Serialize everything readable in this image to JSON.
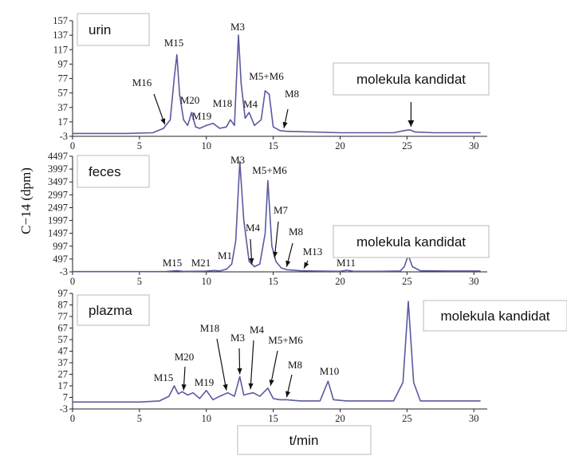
{
  "ylabel": "C−14 (dpm)",
  "xlabel": "t/min",
  "colors": {
    "trace": "#5a5aa0",
    "axis": "#222222",
    "box_border": "#b8b8b8"
  },
  "chart_data": [
    {
      "type": "line",
      "title": "urin",
      "candidate_label": "molekula kandidat",
      "xlim": [
        0,
        31
      ],
      "ylim": [
        -3,
        157
      ],
      "xticks": [
        0,
        5,
        10,
        15,
        20,
        25,
        30
      ],
      "yticks": [
        -3,
        17,
        37,
        57,
        77,
        97,
        117,
        137,
        157
      ],
      "x": [
        0,
        2,
        4,
        6,
        6.8,
        7.3,
        7.6,
        7.8,
        8.0,
        8.3,
        8.6,
        8.9,
        9.2,
        9.5,
        10,
        10.5,
        11,
        11.5,
        11.8,
        12.1,
        12.4,
        12.6,
        12.9,
        13.2,
        13.6,
        14.1,
        14.4,
        14.7,
        15,
        15.5,
        16,
        18,
        20,
        22,
        24,
        24.8,
        25.2,
        25.6,
        27,
        29,
        30.5
      ],
      "y": [
        1,
        1,
        1,
        2,
        8,
        20,
        78,
        110,
        55,
        20,
        12,
        30,
        10,
        8,
        12,
        15,
        8,
        10,
        20,
        12,
        137,
        70,
        22,
        30,
        12,
        20,
        60,
        55,
        10,
        5,
        4,
        3,
        2,
        2,
        2,
        5,
        6,
        3,
        2,
        2,
        2
      ],
      "peaks": [
        {
          "label": "M15",
          "x": 7.6,
          "y": 110,
          "arrow": false
        },
        {
          "label": "M3",
          "x": 12.4,
          "y": 137,
          "arrow": false
        },
        {
          "label": "M5+M6",
          "x": 14.6,
          "y": 60,
          "arrow": false
        },
        {
          "label": "M16",
          "x": 6.9,
          "y": 10,
          "arrow": true
        },
        {
          "label": "M20",
          "x": 8.6,
          "y": 28,
          "arrow": false
        },
        {
          "label": "M19",
          "x": 9.7,
          "y": 14,
          "arrow": false
        },
        {
          "label": "M18",
          "x": 11.5,
          "y": 22,
          "arrow": false
        },
        {
          "label": "M4",
          "x": 13.1,
          "y": 30,
          "arrow": false
        },
        {
          "label": "M8",
          "x": 15.8,
          "y": 5,
          "arrow": true
        }
      ],
      "candidate_arrow": {
        "x": 25.3,
        "y": 6
      }
    },
    {
      "type": "line",
      "title": "feces",
      "candidate_label": "molekula kandidat",
      "xlim": [
        0,
        31
      ],
      "ylim": [
        -3,
        4497
      ],
      "xticks": [
        0,
        5,
        10,
        15,
        20,
        25,
        30
      ],
      "yticks": [
        -3,
        497,
        997,
        1497,
        1997,
        2497,
        2997,
        3497,
        3997,
        4497
      ],
      "x": [
        0,
        5,
        7,
        7.8,
        8.3,
        9,
        10,
        10.6,
        11,
        11.5,
        11.9,
        12.2,
        12.5,
        12.8,
        13.2,
        13.6,
        14,
        14.4,
        14.6,
        14.9,
        15.2,
        15.6,
        16,
        17,
        18,
        20,
        20.5,
        21,
        23,
        24.5,
        24.8,
        25.1,
        25.4,
        26,
        28,
        30.5
      ],
      "y": [
        5,
        5,
        10,
        40,
        15,
        20,
        25,
        50,
        30,
        100,
        300,
        1200,
        4300,
        2000,
        400,
        200,
        300,
        1500,
        3550,
        1000,
        400,
        150,
        80,
        40,
        30,
        20,
        60,
        20,
        20,
        30,
        200,
        650,
        200,
        40,
        30,
        30
      ],
      "peaks": [
        {
          "label": "M3",
          "x": 12.5,
          "y": 4300,
          "arrow": false
        },
        {
          "label": "M5+M6",
          "x": 14.6,
          "y": 3550,
          "arrow": false
        },
        {
          "label": "M15",
          "x": 7.8,
          "y": 40,
          "arrow": false
        },
        {
          "label": "M21",
          "x": 10.0,
          "y": 25,
          "arrow": false
        },
        {
          "label": "M1",
          "x": 11.5,
          "y": 100,
          "arrow": false
        },
        {
          "label": "M4",
          "x": 13.4,
          "y": 200,
          "arrow": true
        },
        {
          "label": "M7",
          "x": 15.1,
          "y": 450,
          "arrow": true
        },
        {
          "label": "M8",
          "x": 16.0,
          "y": 100,
          "arrow": true
        },
        {
          "label": "M13",
          "x": 17.3,
          "y": 40,
          "arrow": true
        },
        {
          "label": "M11",
          "x": 20.5,
          "y": 60,
          "arrow": false
        }
      ],
      "candidate_arrow": null
    },
    {
      "type": "line",
      "title": "plazma",
      "candidate_label": "molekula kandidat",
      "xlim": [
        0,
        31
      ],
      "ylim": [
        -3,
        97
      ],
      "xticks": [
        0,
        5,
        10,
        15,
        20,
        25,
        30
      ],
      "yticks": [
        -3,
        7,
        17,
        27,
        37,
        47,
        57,
        67,
        77,
        87,
        97
      ],
      "x": [
        0,
        3,
        5,
        6.5,
        7.2,
        7.6,
        7.9,
        8.2,
        8.6,
        9,
        9.5,
        10,
        10.5,
        11,
        11.6,
        12.1,
        12.5,
        12.8,
        13.1,
        13.5,
        14,
        14.6,
        15,
        15.5,
        16,
        17,
        18.5,
        19.1,
        19.5,
        20.5,
        22,
        24,
        24.7,
        25.1,
        25.5,
        26,
        28,
        30.5
      ],
      "y": [
        3,
        3,
        3,
        4,
        8,
        17,
        10,
        12,
        9,
        11,
        6,
        13,
        5,
        8,
        11,
        8,
        25,
        9,
        10,
        11,
        8,
        15,
        6,
        5,
        5,
        4,
        4,
        21,
        5,
        4,
        4,
        4,
        20,
        90,
        20,
        4,
        4,
        4
      ],
      "peaks": [
        {
          "label": "M15",
          "x": 7.6,
          "y": 17,
          "arrow": false
        },
        {
          "label": "M20",
          "x": 8.3,
          "y": 11,
          "arrow": true
        },
        {
          "label": "M19",
          "x": 10.0,
          "y": 13,
          "arrow": false
        },
        {
          "label": "M18",
          "x": 11.5,
          "y": 11,
          "arrow": true
        },
        {
          "label": "M3",
          "x": 12.5,
          "y": 25,
          "arrow": true
        },
        {
          "label": "M4",
          "x": 13.3,
          "y": 12,
          "arrow": true
        },
        {
          "label": "M5+M6",
          "x": 14.8,
          "y": 15,
          "arrow": true
        },
        {
          "label": "M8",
          "x": 16.0,
          "y": 5,
          "arrow": true
        },
        {
          "label": "M10",
          "x": 19.1,
          "y": 21,
          "arrow": false
        }
      ],
      "candidate_arrow": null
    }
  ]
}
